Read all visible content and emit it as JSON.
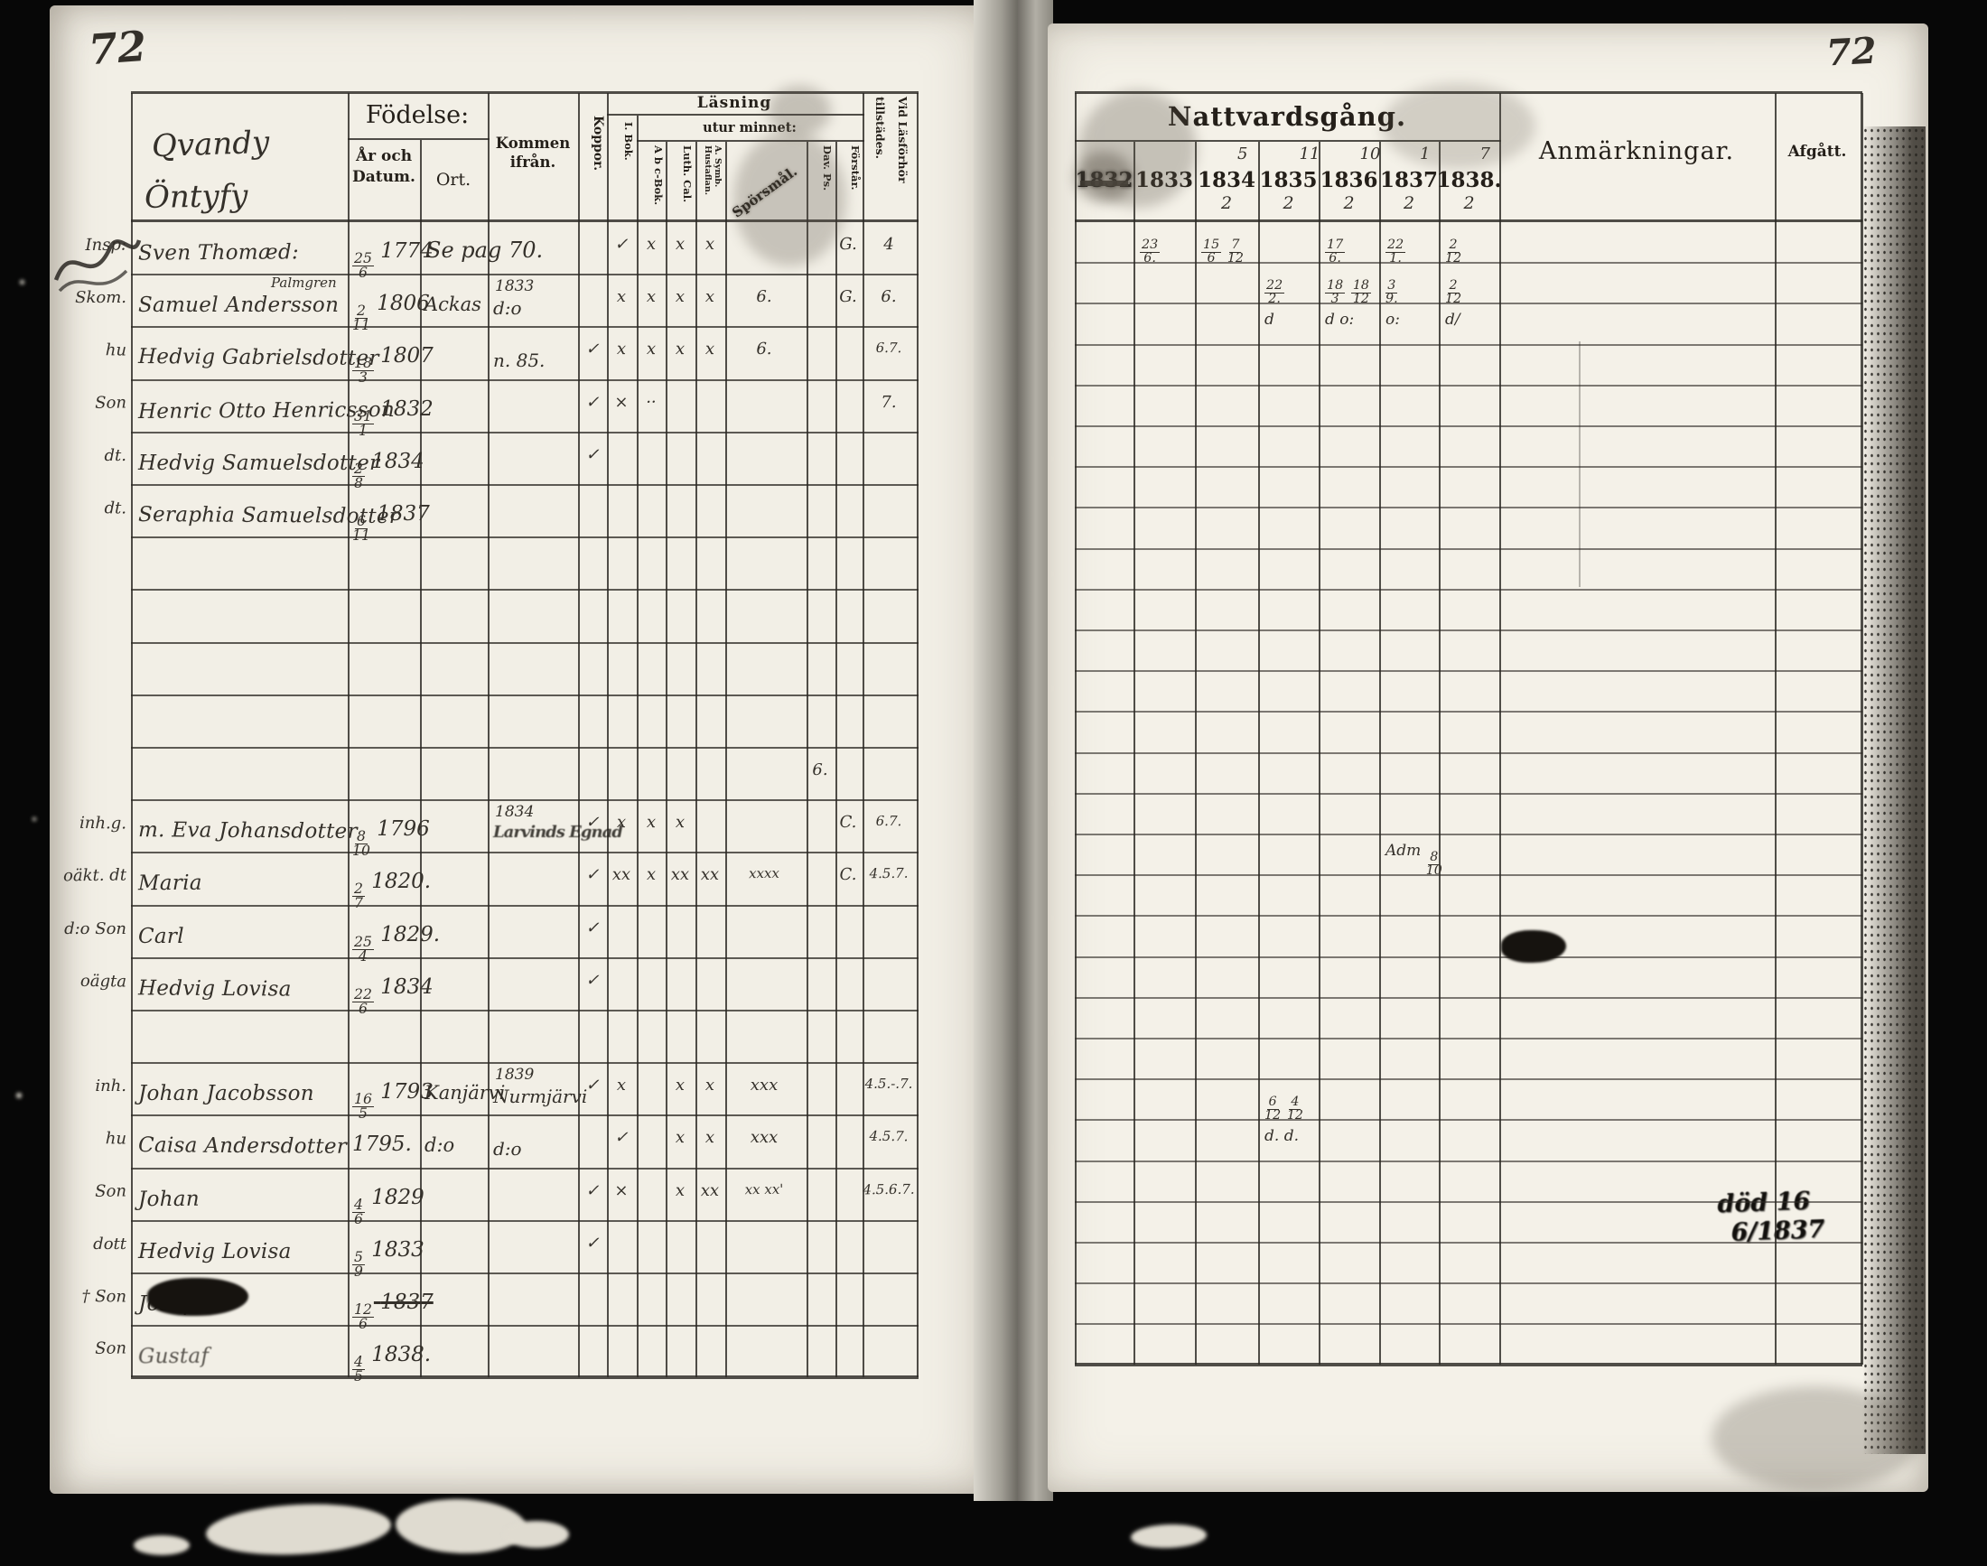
{
  "page": {
    "left_number": "72",
    "right_number": "72"
  },
  "colors": {
    "background": "#070707",
    "paper_left": "#f2efe6",
    "paper_right": "#f4f1e8",
    "print_ink": "#241f19",
    "hand_ink": "#34302a",
    "line_ink": "#2b2823"
  },
  "left": {
    "region_lines": [
      "Qvandy",
      "Öntyfy"
    ],
    "headers": {
      "fodelse": "Födelse:",
      "ar_datum": "År och Datum.",
      "ort": "Ort.",
      "kommen": "Kommen ifrån.",
      "koppor": "Koppor.",
      "lasning1": "Läsning",
      "lasning2": "utur minnet:",
      "cols": [
        "I. Bok.",
        "A b c-Bok.",
        "Luth. Cal.",
        "A. Symb. Hustaflan.",
        "Spörsmål.",
        "Dav. Ps.",
        "Förstår."
      ],
      "vid": "Vid Läsförhör tillstädes."
    },
    "rows": [
      {
        "i": 0,
        "margin": "Insp:",
        "name": "Sven Thomæd:",
        "b": "25/6",
        "y": "1774",
        "across": "Se pag 70.",
        "marks": [
          [
            1,
            "✓"
          ],
          [
            2,
            "x"
          ],
          [
            3,
            "x"
          ],
          [
            4,
            "x"
          ],
          [
            7,
            "G."
          ],
          [
            8,
            "4"
          ]
        ]
      },
      {
        "i": 1,
        "margin": "Skom.",
        "name": "Samuel Andersson",
        "sup": "Palmgren",
        "b": "2/11",
        "y": "1806",
        "ort": "Ackas",
        "kom1": "1833",
        "kom2": "d:o",
        "marks": [
          [
            1,
            "x"
          ],
          [
            2,
            "x"
          ],
          [
            3,
            "x"
          ],
          [
            4,
            "x"
          ],
          [
            5,
            "6."
          ],
          [
            7,
            "G."
          ],
          [
            8,
            "6."
          ]
        ]
      },
      {
        "i": 2,
        "margin": "hu",
        "name": "Hedvig Gabrielsdotter",
        "b": "18/3",
        "y": "1807",
        "kom2": "n. 85.",
        "marks": [
          [
            0,
            "✓"
          ],
          [
            1,
            "x"
          ],
          [
            2,
            "x"
          ],
          [
            3,
            "x"
          ],
          [
            4,
            "x"
          ],
          [
            5,
            "6."
          ],
          [
            8,
            "6.7."
          ]
        ]
      },
      {
        "i": 3,
        "margin": "Son",
        "name": "Henric Otto Henricsson",
        "b": "31/1",
        "y": "1832",
        "marks": [
          [
            0,
            "✓"
          ],
          [
            1,
            "×"
          ],
          [
            2,
            "··"
          ],
          [
            8,
            "7."
          ]
        ]
      },
      {
        "i": 4,
        "margin": "dt.",
        "name": "Hedvig Samuelsdotter",
        "b": "2/8",
        "y": "1834",
        "marks": [
          [
            0,
            "✓"
          ]
        ]
      },
      {
        "i": 5,
        "margin": "dt.",
        "name": "Seraphia Samuelsdotter",
        "b": "6/11",
        "y": "1837",
        "marks": []
      },
      {
        "i": 10,
        "marks": [
          [
            6,
            "6."
          ]
        ]
      },
      {
        "i": 11,
        "margin": "inh.g.",
        "name": "m. Eva Johansdotter",
        "b": "8/10",
        "y": "1796",
        "kom1": "1834",
        "kom2": "Larvinds Egnad",
        "smudge_kom": true,
        "marks": [
          [
            0,
            "✓"
          ],
          [
            1,
            "x"
          ],
          [
            2,
            "x"
          ],
          [
            3,
            "x"
          ],
          [
            7,
            "C."
          ],
          [
            8,
            "6.7."
          ]
        ]
      },
      {
        "i": 12,
        "margin": "oäkt. dt",
        "name": "Maria",
        "b": "2/7",
        "y": "1820.",
        "marks": [
          [
            0,
            "✓"
          ],
          [
            1,
            "xx"
          ],
          [
            2,
            "x"
          ],
          [
            3,
            "xx"
          ],
          [
            4,
            "xx"
          ],
          [
            5,
            "xxxx"
          ],
          [
            7,
            "C."
          ],
          [
            8,
            "4.5.7."
          ]
        ]
      },
      {
        "i": 13,
        "margin": "d:o Son",
        "name": "Carl",
        "b": "25/4",
        "y": "1829.",
        "marks": [
          [
            0,
            "✓"
          ]
        ]
      },
      {
        "i": 14,
        "margin": "oägta",
        "name": "Hedvig Lovisa",
        "b": "22/6",
        "y": "1834",
        "marks": [
          [
            0,
            "✓"
          ]
        ]
      },
      {
        "i": 16,
        "margin": "inh.",
        "name": "Johan Jacobsson",
        "b": "16/5",
        "y": "1793",
        "ort": "Kanjärvi",
        "kom1": "1839",
        "kom2": "Nurmjärvi",
        "marks": [
          [
            0,
            "✓"
          ],
          [
            1,
            "x"
          ],
          [
            3,
            "x"
          ],
          [
            4,
            "x"
          ],
          [
            5,
            "xxx"
          ],
          [
            8,
            "4.5.-.7."
          ]
        ]
      },
      {
        "i": 17,
        "margin": "hu",
        "name": "Caisa Andersdotter",
        "b": "",
        "y": "1795.",
        "ort": "d:o",
        "kom2": "d:o",
        "marks": [
          [
            1,
            "✓"
          ],
          [
            3,
            "x"
          ],
          [
            4,
            "x"
          ],
          [
            5,
            "xxx"
          ],
          [
            8,
            "4.5.7."
          ]
        ]
      },
      {
        "i": 18,
        "margin": "Son",
        "name": "Johan",
        "b": "4/6",
        "y": "1829",
        "marks": [
          [
            0,
            "✓"
          ],
          [
            1,
            "×"
          ],
          [
            3,
            "x"
          ],
          [
            4,
            "xx"
          ],
          [
            5,
            "xx  xx'"
          ],
          [
            8,
            "4.5.6.7."
          ]
        ]
      },
      {
        "i": 19,
        "margin": "dott",
        "name": "Hedvig Lovisa",
        "b": "5/9",
        "y": "1833",
        "marks": [
          [
            0,
            "✓"
          ]
        ]
      },
      {
        "i": 20,
        "margin": "† Son",
        "name": "Joseph",
        "b": "12/6",
        "y": "1837",
        "struck": true,
        "blot": true,
        "marks": []
      },
      {
        "i": 21,
        "margin": "Son",
        "name": "Gustaf",
        "b": "4/5",
        "y": "1838.",
        "smudge": true,
        "marks": []
      }
    ]
  },
  "right": {
    "headers": {
      "natt": "Nattvardsgång.",
      "years": [
        {
          "t": "1832",
          "struck": true
        },
        {
          "t": "1833"
        },
        {
          "t": "1834",
          "sup": "5",
          "sub": "2"
        },
        {
          "t": "1835",
          "sup": "11",
          "sub": "2"
        },
        {
          "t": "1836",
          "sup": "10",
          "sub": "2"
        },
        {
          "t": "1837",
          "sup": "1",
          "sub": "2"
        },
        {
          "t": "1838.",
          "sup": "7",
          "sub": "2"
        }
      ],
      "anm": "Anmärkningar.",
      "afg": "Afgått."
    },
    "entries": [
      {
        "r": 0,
        "c": 1,
        "v": "23/6."
      },
      {
        "r": 0,
        "c": 2,
        "v": "15/6 7/12"
      },
      {
        "r": 0,
        "c": 4,
        "v": "17/6."
      },
      {
        "r": 0,
        "c": 5,
        "v": "22/1."
      },
      {
        "r": 0,
        "c": 6,
        "v": "2/12"
      },
      {
        "r": 1,
        "c": 3,
        "v": "22/2."
      },
      {
        "r": 1,
        "c": 4,
        "v": "18/3 18/12"
      },
      {
        "r": 1,
        "c": 5,
        "v": "3/9."
      },
      {
        "r": 1,
        "c": 6,
        "v": "2/12"
      },
      {
        "r": 2,
        "c": 3,
        "v": "d"
      },
      {
        "r": 2,
        "c": 4,
        "v": "d o:"
      },
      {
        "r": 2,
        "c": 5,
        "v": "o:"
      },
      {
        "r": 2,
        "c": 6,
        "v": "d/"
      },
      {
        "r": 15,
        "c": 5,
        "v": "Adm 8/10"
      },
      {
        "r": 21,
        "c": 3,
        "v": "6/12 4/12"
      },
      {
        "r": 22,
        "c": 3,
        "v": "d. d."
      }
    ],
    "afgatt_note": [
      "död 16",
      "6/1837"
    ]
  }
}
